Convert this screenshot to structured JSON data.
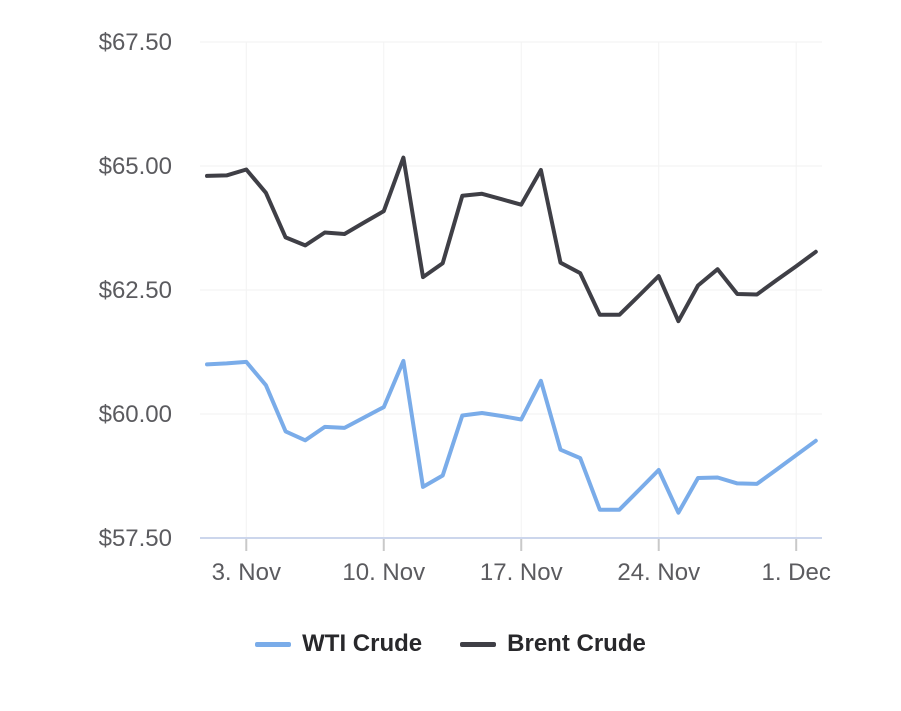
{
  "chart_data": {
    "type": "line",
    "title": "",
    "legend_position": "bottom",
    "grid": true,
    "x_axis": {
      "dates": [
        "1. Nov",
        "2. Nov",
        "3. Nov",
        "4. Nov",
        "5. Nov",
        "6. Nov",
        "7. Nov",
        "8. Nov",
        "9. Nov",
        "10. Nov",
        "11. Nov",
        "12. Nov",
        "13. Nov",
        "14. Nov",
        "15. Nov",
        "16. Nov",
        "17. Nov",
        "18. Nov",
        "19. Nov",
        "20. Nov",
        "21. Nov",
        "22. Nov",
        "23. Nov",
        "24. Nov",
        "25. Nov",
        "26. Nov",
        "27. Nov",
        "28. Nov",
        "29. Nov",
        "30. Nov",
        "1. Dec",
        "2. Dec"
      ],
      "ticks": [
        {
          "day": 2,
          "label": "3. Nov"
        },
        {
          "day": 9,
          "label": "10. Nov"
        },
        {
          "day": 16,
          "label": "17. Nov"
        },
        {
          "day": 23,
          "label": "24. Nov"
        },
        {
          "day": 30,
          "label": "1. Dec"
        }
      ]
    },
    "y_axis": {
      "range": [
        57.5,
        67.5
      ],
      "ticks": [
        {
          "value": 57.5,
          "label": "$57.50"
        },
        {
          "value": 60.0,
          "label": "$60.00"
        },
        {
          "value": 62.5,
          "label": "$62.50"
        },
        {
          "value": 65.0,
          "label": "$65.00"
        },
        {
          "value": 67.5,
          "label": "$67.50"
        }
      ],
      "gridline_values": [
        60.0,
        62.5,
        65.0,
        67.5
      ]
    },
    "series": [
      {
        "name": "WTI Crude",
        "color": "#7aace9",
        "values": [
          61.0,
          61.02,
          61.05,
          60.58,
          59.65,
          59.47,
          59.74,
          59.72,
          59.93,
          60.14,
          61.07,
          58.53,
          58.76,
          59.97,
          60.02,
          59.96,
          59.89,
          60.67,
          59.28,
          59.11,
          58.07,
          58.07,
          58.47,
          58.87,
          58.01,
          58.71,
          58.72,
          58.6,
          58.59,
          58.88,
          59.17,
          59.46
        ]
      },
      {
        "name": "Brent Crude",
        "color": "#3f3f46",
        "values": [
          64.8,
          64.81,
          64.93,
          64.46,
          63.56,
          63.4,
          63.66,
          63.63,
          63.86,
          64.09,
          65.17,
          62.76,
          63.04,
          64.4,
          64.44,
          64.33,
          64.22,
          64.92,
          63.05,
          62.84,
          62.0,
          62.0,
          62.39,
          62.78,
          61.87,
          62.59,
          62.92,
          62.42,
          62.41,
          62.7,
          62.98,
          63.27
        ]
      }
    ],
    "colors": {
      "gridline": "#f2f2f2",
      "baseline": "#ccd6ec",
      "tick_mark": "#c9c9c9",
      "axis_text": "#5b5b5f",
      "legend_text": "#28282b",
      "background": "#ffffff"
    }
  }
}
